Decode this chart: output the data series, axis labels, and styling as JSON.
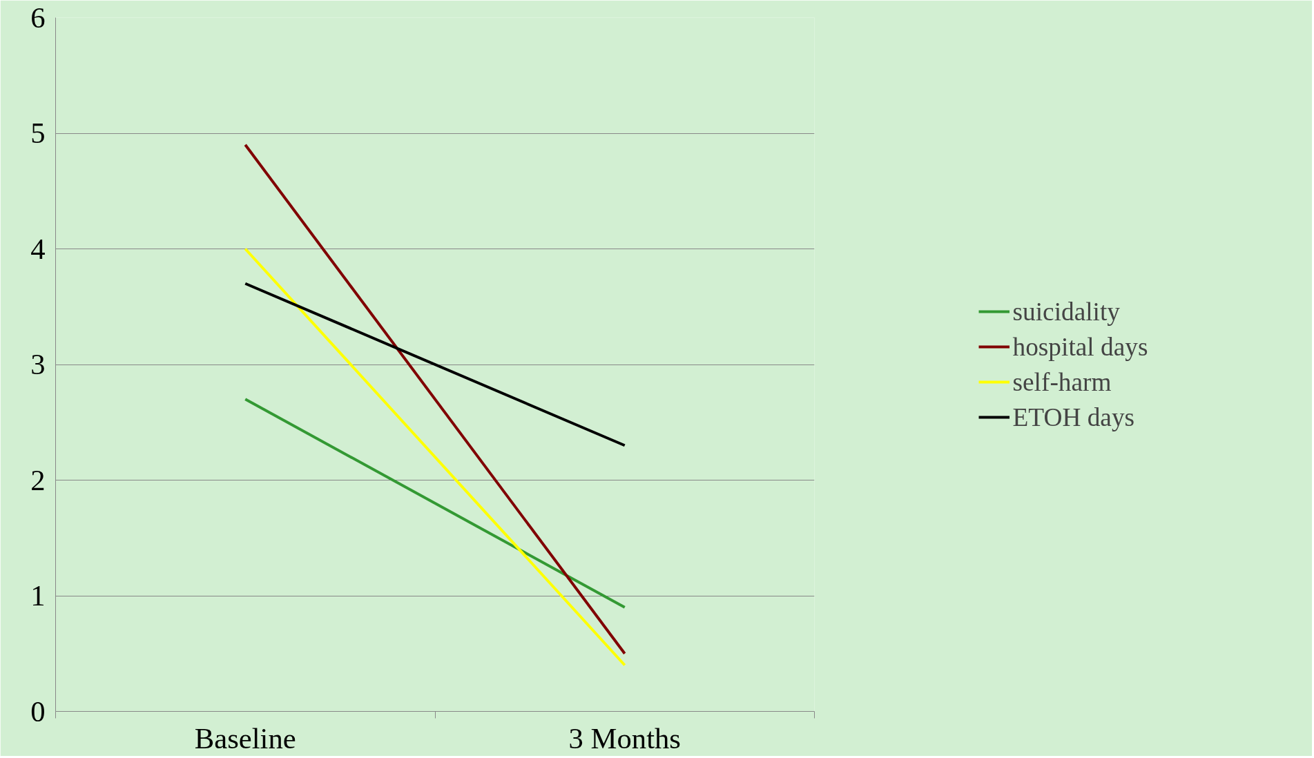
{
  "chart_data": {
    "type": "line",
    "categories": [
      "Baseline",
      "3 Months"
    ],
    "series": [
      {
        "name": "suicidality",
        "color": "#339933",
        "values": [
          2.7,
          0.9
        ]
      },
      {
        "name": "hospital days",
        "color": "#800000",
        "values": [
          4.9,
          0.5
        ]
      },
      {
        "name": "self-harm",
        "color": "#ffff00",
        "values": [
          4.0,
          0.4
        ]
      },
      {
        "name": "ETOH days",
        "color": "#000000",
        "values": [
          3.7,
          2.3
        ]
      }
    ],
    "ylim": [
      0,
      6
    ],
    "yticks": [
      0,
      1,
      2,
      3,
      4,
      5,
      6
    ],
    "grid": "y",
    "legend": "right",
    "marker": "none",
    "line_style": "solid"
  }
}
